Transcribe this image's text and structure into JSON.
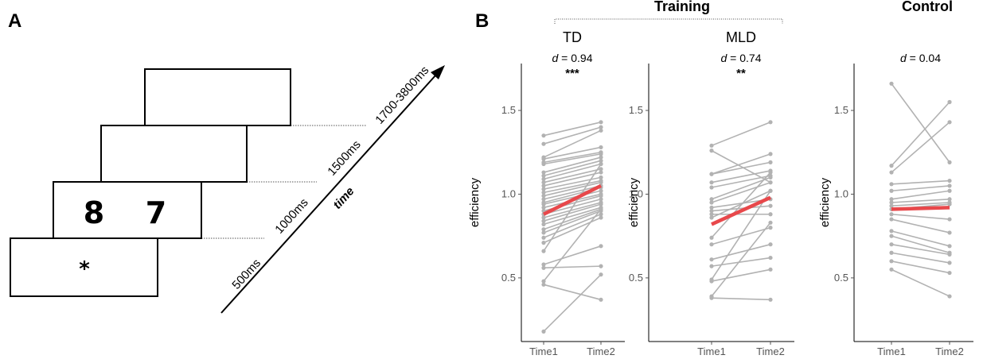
{
  "panel_a": {
    "letter": "A",
    "fixation": "*",
    "digit_left": "8",
    "digit_right": "7",
    "timings": [
      "500ms",
      "1000ms",
      "1500ms",
      "1700-3800ms"
    ],
    "axis_label": "time"
  },
  "panel_b": {
    "letter": "B",
    "training_label": "Training",
    "control_label": "Control"
  },
  "chart_data": [
    {
      "type": "line",
      "subtitle": "TD",
      "d_label": "d",
      "d_value": "= 0.94",
      "stars": "***",
      "ylabel": "efficiency",
      "x": [
        "Time1",
        "Time2"
      ],
      "ylim": [
        0.12,
        1.78
      ],
      "yticks": [
        0.5,
        1.0,
        1.5
      ],
      "ytick_labels": [
        "0.5",
        "1.0",
        "1.5"
      ],
      "individual_color": "#b2b2b2",
      "mean_color": "#e8484b",
      "individuals": [
        [
          1.35,
          1.43
        ],
        [
          1.3,
          1.4
        ],
        [
          1.22,
          1.38
        ],
        [
          1.21,
          1.28
        ],
        [
          1.19,
          1.25
        ],
        [
          1.18,
          1.24
        ],
        [
          1.13,
          1.22
        ],
        [
          1.11,
          1.2
        ],
        [
          1.09,
          1.18
        ],
        [
          1.07,
          1.15
        ],
        [
          1.05,
          1.13
        ],
        [
          1.03,
          1.1
        ],
        [
          1.01,
          1.08
        ],
        [
          0.99,
          1.07
        ],
        [
          0.97,
          1.05
        ],
        [
          0.95,
          1.04
        ],
        [
          0.94,
          1.02
        ],
        [
          0.92,
          1.0
        ],
        [
          0.9,
          0.99
        ],
        [
          0.88,
          0.97
        ],
        [
          0.86,
          0.95
        ],
        [
          0.84,
          0.94
        ],
        [
          0.82,
          0.92
        ],
        [
          0.79,
          0.91
        ],
        [
          0.77,
          0.9
        ],
        [
          0.74,
          0.88
        ],
        [
          0.71,
          0.86
        ],
        [
          0.66,
          1.18
        ],
        [
          0.58,
          0.69
        ],
        [
          0.56,
          0.57
        ],
        [
          0.48,
          0.91
        ],
        [
          0.46,
          0.37
        ],
        [
          0.18,
          0.52
        ]
      ],
      "mean": [
        0.88,
        1.05
      ]
    },
    {
      "type": "line",
      "subtitle": "MLD",
      "d_label": "d",
      "d_value": "= 0.74",
      "stars": "**",
      "ylabel": "efficiency",
      "x": [
        "Time1",
        "Time2"
      ],
      "ylim": [
        0.12,
        1.78
      ],
      "yticks": [
        0.5,
        1.0,
        1.5
      ],
      "ytick_labels": [
        "0.5",
        "1.0",
        "1.5"
      ],
      "individual_color": "#b2b2b2",
      "mean_color": "#e8484b",
      "individuals": [
        [
          1.29,
          1.43
        ],
        [
          1.26,
          1.07
        ],
        [
          1.12,
          1.24
        ],
        [
          1.12,
          1.19
        ],
        [
          1.07,
          1.14
        ],
        [
          1.04,
          1.11
        ],
        [
          0.97,
          1.1
        ],
        [
          0.95,
          1.07
        ],
        [
          0.92,
          0.97
        ],
        [
          0.9,
          0.93
        ],
        [
          0.88,
          0.88
        ],
        [
          0.86,
          1.02
        ],
        [
          0.74,
          1.13
        ],
        [
          0.7,
          0.8
        ],
        [
          0.61,
          0.7
        ],
        [
          0.57,
          0.62
        ],
        [
          0.49,
          1.02
        ],
        [
          0.48,
          0.55
        ],
        [
          0.39,
          0.83
        ],
        [
          0.38,
          0.37
        ]
      ],
      "mean": [
        0.82,
        0.98
      ]
    },
    {
      "type": "line",
      "subtitle": "",
      "d_label": "d",
      "d_value": "= 0.04",
      "stars": "",
      "ylabel": "efficiency",
      "x": [
        "Time1",
        "Time2"
      ],
      "ylim": [
        0.12,
        1.78
      ],
      "yticks": [
        0.5,
        1.0,
        1.5
      ],
      "ytick_labels": [
        "0.5",
        "1.0",
        "1.5"
      ],
      "individual_color": "#b2b2b2",
      "mean_color": "#e8484b",
      "individuals": [
        [
          1.66,
          1.19
        ],
        [
          1.17,
          1.55
        ],
        [
          1.13,
          1.43
        ],
        [
          1.06,
          1.08
        ],
        [
          1.02,
          1.05
        ],
        [
          0.97,
          1.02
        ],
        [
          0.95,
          0.97
        ],
        [
          0.93,
          0.95
        ],
        [
          0.91,
          0.94
        ],
        [
          0.88,
          0.85
        ],
        [
          0.85,
          0.77
        ],
        [
          0.78,
          0.69
        ],
        [
          0.75,
          0.65
        ],
        [
          0.7,
          0.64
        ],
        [
          0.65,
          0.59
        ],
        [
          0.6,
          0.53
        ],
        [
          0.55,
          0.39
        ]
      ],
      "mean": [
        0.91,
        0.92
      ]
    }
  ]
}
